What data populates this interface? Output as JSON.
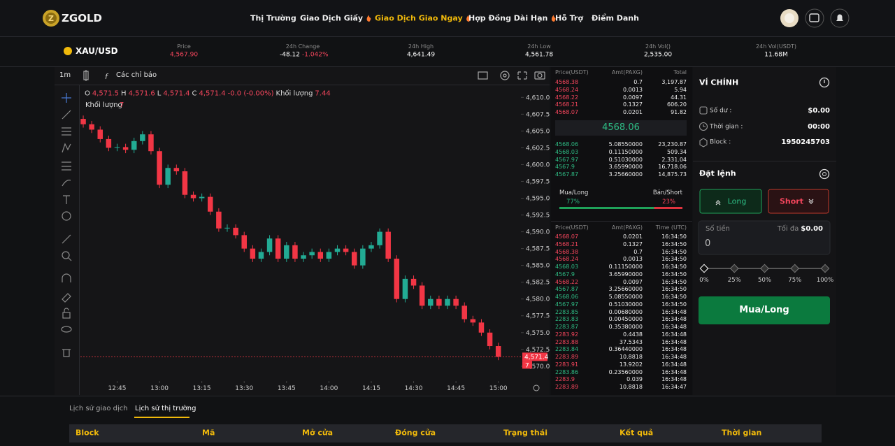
{
  "header": {
    "logo": "ZGOLD",
    "nav": [
      "Thị Trường",
      "Giao Dịch Giấy",
      "Giao Dịch Giao Ngay",
      "Hợp Đồng Dài Hạn",
      "Hỗ Trợ",
      "Điểm Danh"
    ],
    "active_nav": 2,
    "hot_nav": [
      1,
      2,
      3
    ]
  },
  "ticker": {
    "symbol": "XAU/USD",
    "stats": [
      {
        "label": "Price",
        "value": "4,567.90",
        "color": "#f6465d"
      },
      {
        "label": "24h Change",
        "value": "-48.12",
        "change": "-1.042%",
        "color": "#ffffff"
      },
      {
        "label": "24h High",
        "value": "4,641.49",
        "color": "#ffffff"
      },
      {
        "label": "24h Low",
        "value": "4,561.78",
        "color": "#ffffff"
      },
      {
        "label": "24h Vol()",
        "value": "2,535.00",
        "color": "#ffffff"
      },
      {
        "label": "24h Vol(USDT)",
        "value": "11.68M",
        "color": "#ffffff"
      }
    ]
  },
  "toolbar": {
    "interval": "1m",
    "indicators": "Các chỉ báo"
  },
  "chart_data": {
    "type": "candlestick",
    "up_color": "#22ab94",
    "down_color": "#f23645",
    "grid": false,
    "legend": [
      {
        "key": "O",
        "value": "4,571.5"
      },
      {
        "key": "H",
        "value": "4,571.6"
      },
      {
        "key": "L",
        "value": "4,571.4"
      },
      {
        "key": "C",
        "value": "4,571.4"
      }
    ],
    "change": "-0.0 (-0.00%)",
    "volume_label": "Khối lượng",
    "volume_value": "7.44",
    "volume_pane_label": "Khối lượng",
    "volume_pane_value": "7",
    "last": {
      "value": 4571.4,
      "label": "4,571.4"
    },
    "last_volume": "7",
    "xlim": [
      32,
      188
    ],
    "xticks": [
      {
        "value": 45,
        "label": "12:45"
      },
      {
        "value": 60,
        "label": "13:00"
      },
      {
        "value": 75,
        "label": "13:15"
      },
      {
        "value": 90,
        "label": "13:30"
      },
      {
        "value": 105,
        "label": "13:45"
      },
      {
        "value": 120,
        "label": "14:00"
      },
      {
        "value": 135,
        "label": "14:15"
      },
      {
        "value": 150,
        "label": "14:30"
      },
      {
        "value": 165,
        "label": "14:45"
      },
      {
        "value": 180,
        "label": "15:00"
      }
    ],
    "ylim": [
      4567.8,
      4611.8
    ],
    "yticks": [
      {
        "value": 4570,
        "label": "4,570.0"
      },
      {
        "value": 4572.5,
        "label": "4,572.5"
      },
      {
        "value": 4575,
        "label": "4,575.0"
      },
      {
        "value": 4577.5,
        "label": "4,577.5"
      },
      {
        "value": 4580,
        "label": "4,580.0"
      },
      {
        "value": 4582.5,
        "label": "4,582.5"
      },
      {
        "value": 4585,
        "label": "4,585.0"
      },
      {
        "value": 4587.5,
        "label": "4,587.5"
      },
      {
        "value": 4590,
        "label": "4,590.0"
      },
      {
        "value": 4592.5,
        "label": "4,592.5"
      },
      {
        "value": 4595,
        "label": "4,595.0"
      },
      {
        "value": 4597.5,
        "label": "4,597.5"
      },
      {
        "value": 4600,
        "label": "4,600.0"
      },
      {
        "value": 4602.5,
        "label": "4,602.5"
      },
      {
        "value": 4605,
        "label": "4,605.0"
      },
      {
        "value": 4607.5,
        "label": "4,607.5"
      },
      {
        "value": 4610,
        "label": "4,610.0"
      }
    ],
    "x": [
      33,
      36,
      39,
      42,
      45,
      48,
      51,
      54,
      57,
      60,
      63,
      66,
      69,
      72,
      75,
      78,
      81,
      84,
      87,
      90,
      93,
      96,
      99,
      102,
      105,
      108,
      111,
      114,
      117,
      120,
      123,
      126,
      129,
      132,
      135,
      138,
      141,
      144,
      147,
      150,
      153,
      156,
      159,
      162,
      165,
      168,
      171,
      174,
      177,
      180
    ],
    "open": [
      4606.8,
      4606.0,
      4605.2,
      4603.8,
      4602.5,
      4602.6,
      4602.2,
      4603.5,
      4604.5,
      4602.0,
      4597.0,
      4599.5,
      4599.0,
      4595.5,
      4595.0,
      4595.2,
      4593.0,
      4590.5,
      4590.6,
      4589.5,
      4587.5,
      4586.0,
      4587.0,
      4589.0,
      4586.0,
      4588.0,
      4586.0,
      4586.5,
      4587.0,
      4586.0,
      4587.0,
      4587.5,
      4587.0,
      4585.0,
      4587.5,
      4588.0,
      4590.0,
      4586.0,
      4580.0,
      4583.0,
      4582.0,
      4579.0,
      4580.0,
      4579.0,
      4580.0,
      4579.0,
      4577.0,
      4576.5,
      4575.0,
      4573.0
    ],
    "high": [
      4607.3,
      4606.5,
      4605.7,
      4604.3,
      4603.1,
      4603.1,
      4604.0,
      4605.0,
      4605.0,
      4602.5,
      4600.0,
      4600.0,
      4599.5,
      4596.0,
      4595.7,
      4595.7,
      4593.5,
      4591.1,
      4591.1,
      4590.0,
      4588.0,
      4587.5,
      4589.5,
      4589.5,
      4588.5,
      4588.5,
      4587.0,
      4587.5,
      4587.5,
      4587.5,
      4588.0,
      4588.0,
      4587.5,
      4588.0,
      4588.5,
      4590.5,
      4590.5,
      4586.5,
      4583.5,
      4583.5,
      4582.5,
      4580.5,
      4580.5,
      4580.5,
      4580.5,
      4579.5,
      4577.5,
      4577.0,
      4575.5,
      4573.5
    ],
    "low": [
      4605.5,
      4604.7,
      4603.3,
      4602.0,
      4602.0,
      4601.7,
      4601.7,
      4603.0,
      4601.5,
      4596.5,
      4596.5,
      4598.5,
      4595.0,
      4594.5,
      4594.5,
      4592.5,
      4590.0,
      4590.0,
      4589.0,
      4587.0,
      4585.5,
      4585.5,
      4586.5,
      4585.5,
      4585.5,
      4585.5,
      4585.5,
      4586.0,
      4585.5,
      4585.5,
      4586.5,
      4586.5,
      4584.5,
      4584.5,
      4587.0,
      4587.5,
      4585.5,
      4579.5,
      4579.5,
      4581.5,
      4578.5,
      4578.5,
      4578.5,
      4578.5,
      4578.5,
      4576.5,
      4576.0,
      4574.5,
      4572.5,
      4570.9
    ],
    "close": [
      4606.0,
      4605.2,
      4603.8,
      4602.5,
      4602.6,
      4602.2,
      4603.5,
      4604.5,
      4602.0,
      4597.0,
      4599.5,
      4599.0,
      4595.5,
      4595.0,
      4595.2,
      4593.0,
      4590.5,
      4590.6,
      4589.5,
      4587.5,
      4586.0,
      4587.0,
      4589.0,
      4586.0,
      4588.0,
      4586.0,
      4586.5,
      4587.0,
      4586.0,
      4587.0,
      4587.5,
      4587.0,
      4585.0,
      4587.5,
      4588.0,
      4590.0,
      4586.0,
      4580.0,
      4583.0,
      4582.0,
      4579.0,
      4580.0,
      4579.0,
      4580.0,
      4579.0,
      4577.0,
      4576.5,
      4575.0,
      4573.0,
      4571.4
    ]
  },
  "order_book": {
    "columns": [
      "Price(USDT)",
      "Amt(PAXG)",
      "Total"
    ],
    "asks": [
      [
        "4568.38",
        "0.7",
        "3,197.87"
      ],
      [
        "4568.24",
        "0.0013",
        "5.94"
      ],
      [
        "4568.22",
        "0.0097",
        "44.31"
      ],
      [
        "4568.21",
        "0.1327",
        "606.20"
      ],
      [
        "4568.07",
        "0.0201",
        "91.82"
      ]
    ],
    "mid": "4568.06",
    "bids": [
      [
        "4568.06",
        "5.08550000",
        "23,230.87"
      ],
      [
        "4568.03",
        "0.11150000",
        "509.34"
      ],
      [
        "4567.97",
        "0.51030000",
        "2,331.04"
      ],
      [
        "4567.9",
        "3.65990000",
        "16,718.06"
      ],
      [
        "4567.87",
        "3.25660000",
        "14,875.73"
      ]
    ],
    "buy_label": "Mua/Long",
    "sell_label": "Bán/Short",
    "buy_ratio": {
      "value": 77,
      "label": "77%"
    },
    "sell_ratio": {
      "value": 23,
      "label": "23%"
    }
  },
  "trades": {
    "columns": [
      "Price(USDT)",
      "Amt(PAXG)",
      "Time (UTC)"
    ],
    "rows": [
      {
        "price": "4568.07",
        "amount": "0.0201",
        "time": "16:34:50",
        "side": "sell"
      },
      {
        "price": "4568.21",
        "amount": "0.1327",
        "time": "16:34:50",
        "side": "sell"
      },
      {
        "price": "4568.38",
        "amount": "0.7",
        "time": "16:34:50",
        "side": "sell"
      },
      {
        "price": "4568.24",
        "amount": "0.0013",
        "time": "16:34:50",
        "side": "sell"
      },
      {
        "price": "4568.03",
        "amount": "0.11150000",
        "time": "16:34:50",
        "side": "buy"
      },
      {
        "price": "4567.9",
        "amount": "3.65990000",
        "time": "16:34:50",
        "side": "buy"
      },
      {
        "price": "4568.22",
        "amount": "0.0097",
        "time": "16:34:50",
        "side": "sell"
      },
      {
        "price": "4567.87",
        "amount": "3.25660000",
        "time": "16:34:50",
        "side": "buy"
      },
      {
        "price": "4568.06",
        "amount": "5.08550000",
        "time": "16:34:50",
        "side": "buy"
      },
      {
        "price": "4567.97",
        "amount": "0.51030000",
        "time": "16:34:50",
        "side": "buy"
      },
      {
        "price": "2283.85",
        "amount": "0.00680000",
        "time": "16:34:48",
        "side": "buy"
      },
      {
        "price": "2283.83",
        "amount": "0.00450000",
        "time": "16:34:48",
        "side": "buy"
      },
      {
        "price": "2283.87",
        "amount": "0.35380000",
        "time": "16:34:48",
        "side": "buy"
      },
      {
        "price": "2283.92",
        "amount": "0.4438",
        "time": "16:34:48",
        "side": "sell"
      },
      {
        "price": "2283.88",
        "amount": "37.5343",
        "time": "16:34:48",
        "side": "sell"
      },
      {
        "price": "2283.84",
        "amount": "0.36440000",
        "time": "16:34:48",
        "side": "buy"
      },
      {
        "price": "2283.89",
        "amount": "10.8818",
        "time": "16:34:48",
        "side": "sell"
      },
      {
        "price": "2283.91",
        "amount": "13.9202",
        "time": "16:34:48",
        "side": "sell"
      },
      {
        "price": "2283.86",
        "amount": "0.23560000",
        "time": "16:34:48",
        "side": "buy"
      },
      {
        "price": "2283.9",
        "amount": "0.039",
        "time": "16:34:48",
        "side": "sell"
      },
      {
        "price": "2283.89",
        "amount": "10.8818",
        "time": "16:34:47",
        "side": "sell"
      }
    ]
  },
  "wallet": {
    "title": "VÍ CHÍNH",
    "rows": [
      {
        "label": "Số dư :",
        "value": "$0.00"
      },
      {
        "label": "Thời gian :",
        "value": "00:00"
      },
      {
        "label": "Block :",
        "value": "1950245703"
      }
    ],
    "order_title": "Đặt lệnh",
    "long": "Long",
    "short": "Short",
    "amount_label": "Số tiền",
    "max_label": "Tối đa",
    "max_value": "$0.00",
    "amount_value": "0",
    "slider": [
      "0%",
      "25%",
      "50%",
      "75%",
      "100%"
    ],
    "submit": "Mua/Long"
  },
  "history": {
    "tabs": [
      "Lịch sử giao dịch",
      "Lịch sử thị trường"
    ],
    "active_tab": 1,
    "columns": [
      "Block",
      "Mã",
      "Mở cửa",
      "Đóng cửa",
      "Trạng thái",
      "Kết quả",
      "Thời gian"
    ]
  }
}
